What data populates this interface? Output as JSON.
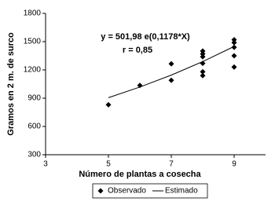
{
  "chart_data": {
    "type": "scatter",
    "x_label": "Número de plantas a cosecha",
    "y_label": "Gramos en 2 m. de surco",
    "annotations": [
      "y = 501,98 e(0,1178*X)",
      "r = 0,85"
    ],
    "xlim": [
      3,
      10
    ],
    "xticks": [
      3,
      5,
      7,
      9
    ],
    "ylim": [
      300,
      1800
    ],
    "yticks": [
      300,
      600,
      900,
      1200,
      1500,
      1800
    ],
    "legend": "bottom",
    "series": [
      {
        "name": "Observado",
        "color": "#000000",
        "style": "marker",
        "x": [
          5,
          6,
          7,
          7,
          8,
          8,
          8,
          8,
          8,
          8,
          9,
          9,
          9,
          9,
          9
        ],
        "values": [
          830,
          1035,
          1265,
          1090,
          1400,
          1370,
          1340,
          1270,
          1180,
          1140,
          1520,
          1490,
          1440,
          1350,
          1230
        ]
      },
      {
        "name": "Estimado",
        "color": "#000000",
        "style": "line",
        "x": [
          5,
          6,
          7,
          8,
          9
        ],
        "values": [
          905,
          1018,
          1145,
          1288,
          1449
        ]
      }
    ]
  }
}
